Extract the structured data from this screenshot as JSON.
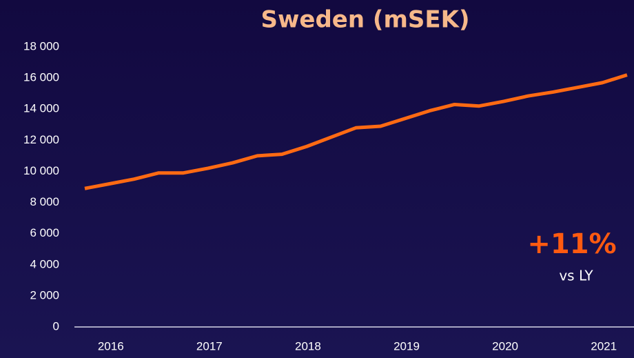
{
  "chart_data": {
    "type": "line",
    "title": "Sweden (mSEK)",
    "categories": [
      null,
      "2016",
      null,
      null,
      null,
      "2017",
      null,
      null,
      null,
      "2018",
      null,
      null,
      null,
      "2019",
      null,
      null,
      null,
      "2020",
      null,
      null,
      null,
      "2021",
      null
    ],
    "series": [
      {
        "name": "Sweden",
        "color": "#ff6a13",
        "values": [
          8900,
          9200,
          9500,
          9900,
          9900,
          10200,
          10550,
          11000,
          11100,
          11600,
          12200,
          12800,
          12900,
          13400,
          13900,
          14300,
          14200,
          14500,
          14850,
          15100,
          15400,
          15700,
          16200
        ]
      }
    ],
    "ylim": [
      0,
      18000
    ],
    "yticks": [
      0,
      {
        "value": 2000,
        "label": "2 000"
      },
      {
        "value": 4000,
        "label": "4 000"
      },
      {
        "value": 6000,
        "label": "6 000"
      },
      {
        "value": 8000,
        "label": "8 000"
      },
      {
        "value": 10000,
        "label": "10 000"
      },
      {
        "value": 12000,
        "label": "12 000"
      },
      {
        "value": 14000,
        "label": "14 000"
      },
      {
        "value": 16000,
        "label": "16 000"
      },
      {
        "value": 18000,
        "label": "18 000"
      }
    ],
    "annotations": [
      {
        "text": "+11%",
        "color": "#ff5a10"
      },
      {
        "text": "vs LY"
      }
    ]
  }
}
